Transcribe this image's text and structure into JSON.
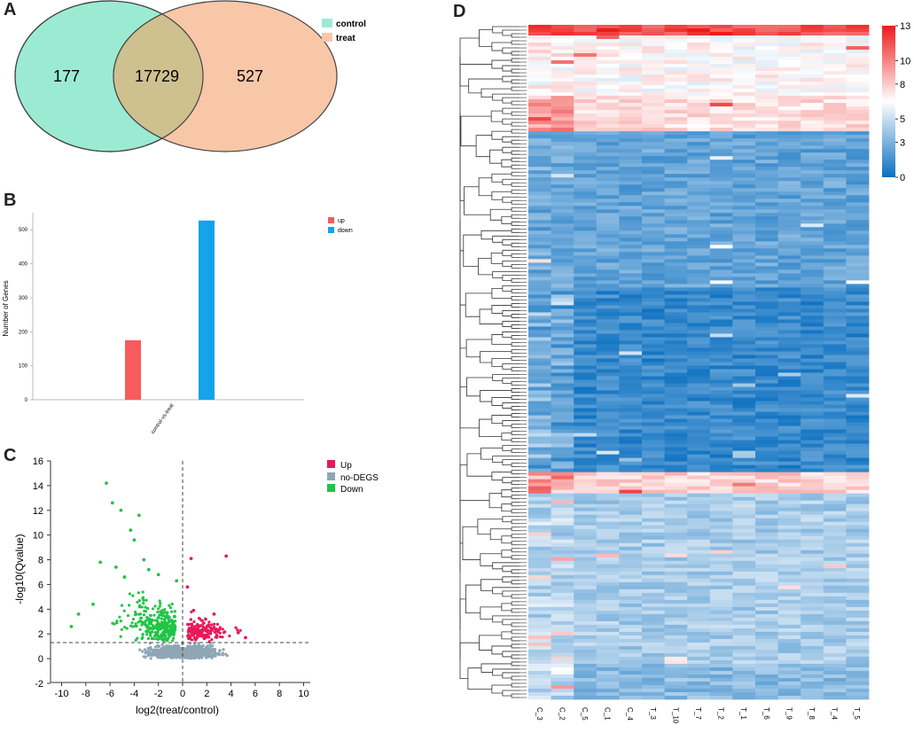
{
  "panels": {
    "a": "A",
    "b": "B",
    "c": "C",
    "d": "D"
  },
  "chart_data": [
    {
      "type": "venn",
      "sets": [
        {
          "name": "control",
          "color": "#9BEBD3"
        },
        {
          "name": "treat",
          "color": "#F8C7A8"
        }
      ],
      "only_first": "177",
      "intersection": "17729",
      "only_second": "527",
      "overlap_color": "#CFC090"
    },
    {
      "type": "bar",
      "categories": [
        "control-vs-treat"
      ],
      "series": [
        {
          "name": "up",
          "color": "#F75B5B",
          "values": [
            175
          ]
        },
        {
          "name": "down",
          "color": "#14A3E8",
          "values": [
            527
          ]
        }
      ],
      "ylabel": "Number of Genes",
      "ylim": [
        0,
        550
      ],
      "yticks": [
        "0",
        "100",
        "200",
        "300",
        "400",
        "500"
      ]
    },
    {
      "type": "scatter",
      "xlabel": "log2(treat/control)",
      "ylabel": "-log10(Qvalue)",
      "xlim": [
        -10,
        10
      ],
      "ylim": [
        -2,
        16
      ],
      "xticks": [
        "-10",
        "-8",
        "-6",
        "-4",
        "-2",
        "0",
        "2",
        "4",
        "6",
        "8",
        "10"
      ],
      "yticks": [
        "-2",
        "0",
        "2",
        "4",
        "6",
        "8",
        "10",
        "12",
        "14",
        "16"
      ],
      "threshold_y": 1.3,
      "threshold_x": 0,
      "legend": [
        {
          "name": "Up",
          "color": "#E8195A"
        },
        {
          "name": "no-DEGS",
          "color": "#8FA6B5"
        },
        {
          "name": "Down",
          "color": "#22C447"
        }
      ],
      "highlight_points": [
        {
          "x": -6.3,
          "y": 14.2,
          "g": "Down"
        },
        {
          "x": -5.8,
          "y": 12.6,
          "g": "Down"
        },
        {
          "x": -5.1,
          "y": 12.0,
          "g": "Down"
        },
        {
          "x": -3.6,
          "y": 11.6,
          "g": "Down"
        },
        {
          "x": -4.3,
          "y": 10.4,
          "g": "Down"
        },
        {
          "x": -4.0,
          "y": 9.6,
          "g": "Down"
        },
        {
          "x": -5.5,
          "y": 7.4,
          "g": "Down"
        },
        {
          "x": -6.8,
          "y": 7.8,
          "g": "Down"
        },
        {
          "x": -3.2,
          "y": 8.0,
          "g": "Down"
        },
        {
          "x": -2.8,
          "y": 7.2,
          "g": "Down"
        },
        {
          "x": -4.8,
          "y": 6.6,
          "g": "Down"
        },
        {
          "x": -2.0,
          "y": 6.8,
          "g": "Down"
        },
        {
          "x": -8.6,
          "y": 3.6,
          "g": "Down"
        },
        {
          "x": -9.2,
          "y": 2.6,
          "g": "Down"
        },
        {
          "x": -7.4,
          "y": 4.4,
          "g": "Down"
        },
        {
          "x": -0.5,
          "y": 6.3,
          "g": "Down"
        },
        {
          "x": 3.6,
          "y": 8.3,
          "g": "Up"
        },
        {
          "x": 0.7,
          "y": 8.1,
          "g": "Up"
        },
        {
          "x": 0.4,
          "y": 5.8,
          "g": "Up"
        },
        {
          "x": 0.9,
          "y": 3.9,
          "g": "Up"
        },
        {
          "x": 2.6,
          "y": 3.6,
          "g": "Up"
        },
        {
          "x": 1.9,
          "y": 3.2,
          "g": "Up"
        },
        {
          "x": 4.6,
          "y": 2.1,
          "g": "Up"
        },
        {
          "x": 5.2,
          "y": 1.7,
          "g": "Up"
        }
      ]
    },
    {
      "type": "heatmap",
      "columns": [
        "C_3",
        "C_2",
        "C_5",
        "C_1",
        "C_4",
        "T_3",
        "T_10",
        "T_7",
        "T_2",
        "T_1",
        "T_6",
        "T_9",
        "T_8",
        "T_4",
        "T_5"
      ],
      "colorbar_ticks": [
        "13",
        "10",
        "8",
        "5",
        "3",
        "0"
      ],
      "range": [
        0,
        13
      ],
      "colors": {
        "low": "#0A6FC0",
        "mid": "#FFFFFF",
        "high": "#EE1B1B"
      }
    }
  ]
}
